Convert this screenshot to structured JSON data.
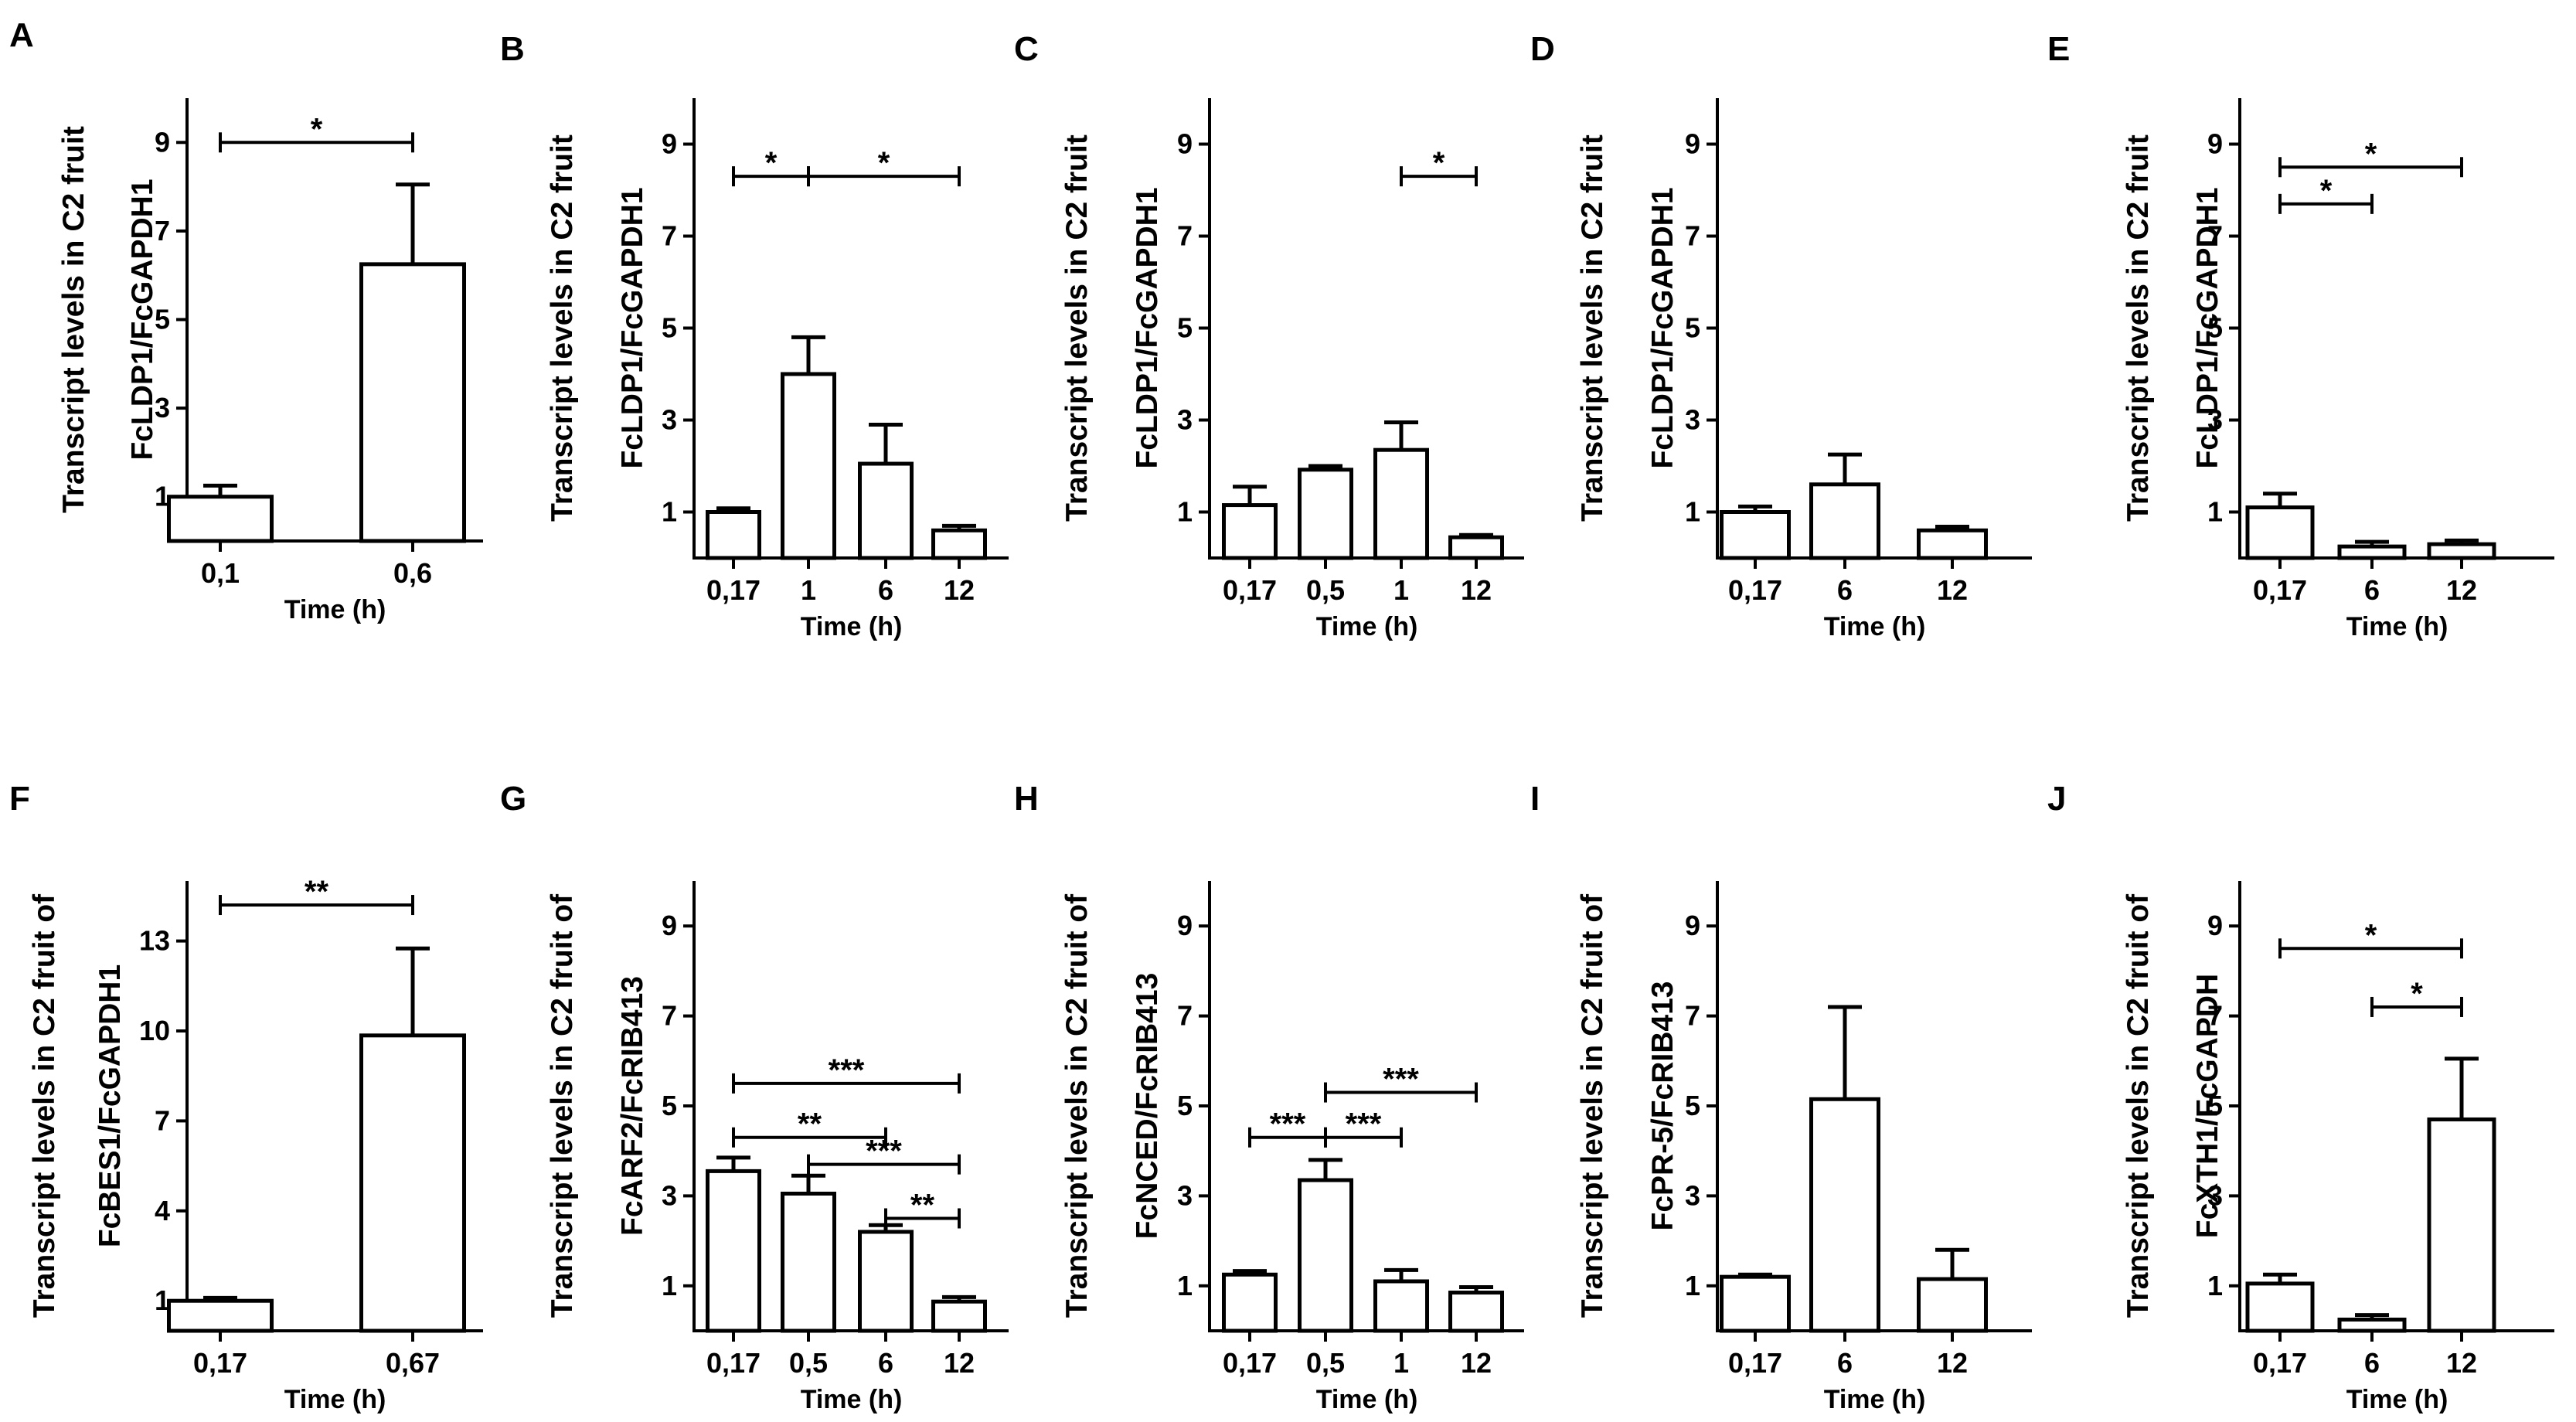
{
  "chart_data": [
    {
      "id": "A",
      "type": "bar",
      "panel_label": "A",
      "ylabel_lines": [
        "Transcript levels in C2 fruit",
        "FcLDP1/FcGAPDH1"
      ],
      "xlabel": "Time  (h)",
      "categories": [
        "0,1",
        "0,6"
      ],
      "values": [
        1.0,
        6.25
      ],
      "errors": [
        0.25,
        1.8
      ],
      "ylim": [
        0,
        10
      ],
      "yticks": [
        1,
        3,
        5,
        7,
        9
      ],
      "ytick_labels": [
        "1",
        "3",
        "5",
        "7",
        "9"
      ],
      "significance": [
        {
          "from": 0,
          "to": 1,
          "label": "*"
        }
      ]
    },
    {
      "id": "B",
      "type": "bar",
      "panel_label": "B",
      "ylabel_lines": [
        "Transcript levels in C2 fruit",
        "FcLDP1/FcGAPDH1"
      ],
      "xlabel": "Time (h)",
      "categories": [
        "0,17",
        "1",
        "6",
        "12"
      ],
      "values": [
        1.0,
        4.0,
        2.05,
        0.6
      ],
      "errors": [
        0.08,
        0.8,
        0.85,
        0.1
      ],
      "ylim": [
        0,
        10
      ],
      "yticks": [
        1,
        3,
        5,
        7,
        9
      ],
      "ytick_labels": [
        "1",
        "3",
        "5",
        "7",
        "9"
      ],
      "significance": [
        {
          "from": 0,
          "to": 1,
          "label": "*"
        },
        {
          "from": 1,
          "to": 3,
          "label": "*"
        }
      ]
    },
    {
      "id": "C",
      "type": "bar",
      "panel_label": "C",
      "ylabel_lines": [
        "Transcript levels in C2 fruit",
        "FcLDP1/FcGAPDH1"
      ],
      "xlabel": "Time (h)",
      "categories": [
        "0,17",
        "0,5",
        "1",
        "12"
      ],
      "values": [
        1.15,
        1.92,
        2.35,
        0.45
      ],
      "errors": [
        0.4,
        0.08,
        0.6,
        0.05
      ],
      "ylim": [
        0,
        10
      ],
      "yticks": [
        1,
        3,
        5,
        7,
        9
      ],
      "ytick_labels": [
        "1",
        "3",
        "5",
        "7",
        "9"
      ],
      "significance": [
        {
          "from": 2,
          "to": 3,
          "label": "*"
        }
      ]
    },
    {
      "id": "D",
      "type": "bar",
      "panel_label": "D",
      "ylabel_lines": [
        "Transcript levels in C2 fruit",
        "FcLDP1/FcGAPDH1"
      ],
      "xlabel": "Time (h)",
      "categories": [
        "0,17",
        "6",
        "12"
      ],
      "values": [
        1.0,
        1.6,
        0.6
      ],
      "errors": [
        0.12,
        0.65,
        0.08
      ],
      "ylim": [
        0,
        10
      ],
      "yticks": [
        1,
        3,
        5,
        7,
        9
      ],
      "ytick_labels": [
        "1",
        "3",
        "5",
        "7",
        "9"
      ],
      "significance": []
    },
    {
      "id": "E",
      "type": "bar",
      "panel_label": "E",
      "ylabel_lines": [
        "Transcript levels in C2 fruit",
        "FcLDP1/FcGAPDH1"
      ],
      "xlabel": "Time (h)",
      "categories": [
        "0,17",
        "6",
        "12"
      ],
      "values": [
        1.1,
        0.25,
        0.3
      ],
      "errors": [
        0.3,
        0.1,
        0.08
      ],
      "ylim": [
        0,
        10
      ],
      "yticks": [
        1,
        3,
        5,
        7,
        9
      ],
      "ytick_labels": [
        "1",
        "3",
        "5",
        "7",
        "9"
      ],
      "significance": [
        {
          "from": 0,
          "to": 2,
          "label": "*"
        },
        {
          "from": 0,
          "to": 1,
          "label": "*"
        }
      ]
    },
    {
      "id": "F",
      "type": "bar",
      "panel_label": "F",
      "ylabel_lines": [
        "Transcript levels in C2 fruit of",
        "FcBES1/FcGAPDH1"
      ],
      "xlabel": "Time (h)",
      "categories": [
        "0,17",
        "0,67"
      ],
      "values": [
        1.0,
        9.85
      ],
      "errors": [
        0.1,
        2.9
      ],
      "ylim": [
        0,
        15
      ],
      "yticks": [
        1,
        4,
        7,
        10,
        13
      ],
      "ytick_labels": [
        "1",
        "4",
        "7",
        "10",
        "13"
      ],
      "significance": [
        {
          "from": 0,
          "to": 1,
          "label": "**"
        }
      ]
    },
    {
      "id": "G",
      "type": "bar",
      "panel_label": "G",
      "ylabel_lines": [
        "Transcript levels in C2 fruit of",
        "FcARF2/FcRIB413"
      ],
      "xlabel": "Time (h)",
      "categories": [
        "0,17",
        "0,5",
        "6",
        "12"
      ],
      "values": [
        3.55,
        3.05,
        2.2,
        0.65
      ],
      "errors": [
        0.3,
        0.4,
        0.15,
        0.1
      ],
      "ylim": [
        0,
        10
      ],
      "yticks": [
        1,
        3,
        5,
        7,
        9
      ],
      "ytick_labels": [
        "1",
        "3",
        "5",
        "7",
        "9"
      ],
      "significance": [
        {
          "from": 0,
          "to": 3,
          "label": "***"
        },
        {
          "from": 0,
          "to": 2,
          "label": "**"
        },
        {
          "from": 1,
          "to": 3,
          "label": "***"
        },
        {
          "from": 2,
          "to": 3,
          "label": "**"
        }
      ]
    },
    {
      "id": "H",
      "type": "bar",
      "panel_label": "H",
      "ylabel_lines": [
        "Transcript levels in C2 fruit of",
        "FcNCED/FcRIB413"
      ],
      "xlabel": "Time (h)",
      "categories": [
        "0,17",
        "0,5",
        "1",
        "12"
      ],
      "values": [
        1.25,
        3.35,
        1.1,
        0.85
      ],
      "errors": [
        0.08,
        0.45,
        0.25,
        0.12
      ],
      "ylim": [
        0,
        10
      ],
      "yticks": [
        1,
        3,
        5,
        7,
        9
      ],
      "ytick_labels": [
        "1",
        "3",
        "5",
        "7",
        "9"
      ],
      "significance": [
        {
          "from": 0,
          "to": 1,
          "label": "***"
        },
        {
          "from": 1,
          "to": 3,
          "label": "***"
        },
        {
          "from": 1,
          "to": 2,
          "label": "***"
        }
      ]
    },
    {
      "id": "I",
      "type": "bar",
      "panel_label": "I",
      "ylabel_lines": [
        "Transcript levels in C2 fruit of",
        "FcPR-5/FcRIB413"
      ],
      "xlabel": "Time (h)",
      "categories": [
        "0,17",
        "6",
        "12"
      ],
      "values": [
        1.2,
        5.15,
        1.15
      ],
      "errors": [
        0.05,
        2.05,
        0.65
      ],
      "ylim": [
        0,
        10
      ],
      "yticks": [
        1,
        3,
        5,
        7,
        9
      ],
      "ytick_labels": [
        "1",
        "3",
        "5",
        "7",
        "9"
      ],
      "significance": []
    },
    {
      "id": "J",
      "type": "bar",
      "panel_label": "J",
      "ylabel_lines": [
        "Transcript levels in C2 fruit of",
        "FcXTH1/FcGAPDH"
      ],
      "xlabel": "Time (h)",
      "categories": [
        "0,17",
        "6",
        "12"
      ],
      "values": [
        1.05,
        0.25,
        4.7
      ],
      "errors": [
        0.2,
        0.1,
        1.35
      ],
      "ylim": [
        0,
        10
      ],
      "yticks": [
        1,
        3,
        5,
        7,
        9
      ],
      "ytick_labels": [
        "1",
        "3",
        "5",
        "7",
        "9"
      ],
      "significance": [
        {
          "from": 0,
          "to": 2,
          "label": "*"
        },
        {
          "from": 1,
          "to": 2,
          "label": "*"
        }
      ]
    }
  ]
}
